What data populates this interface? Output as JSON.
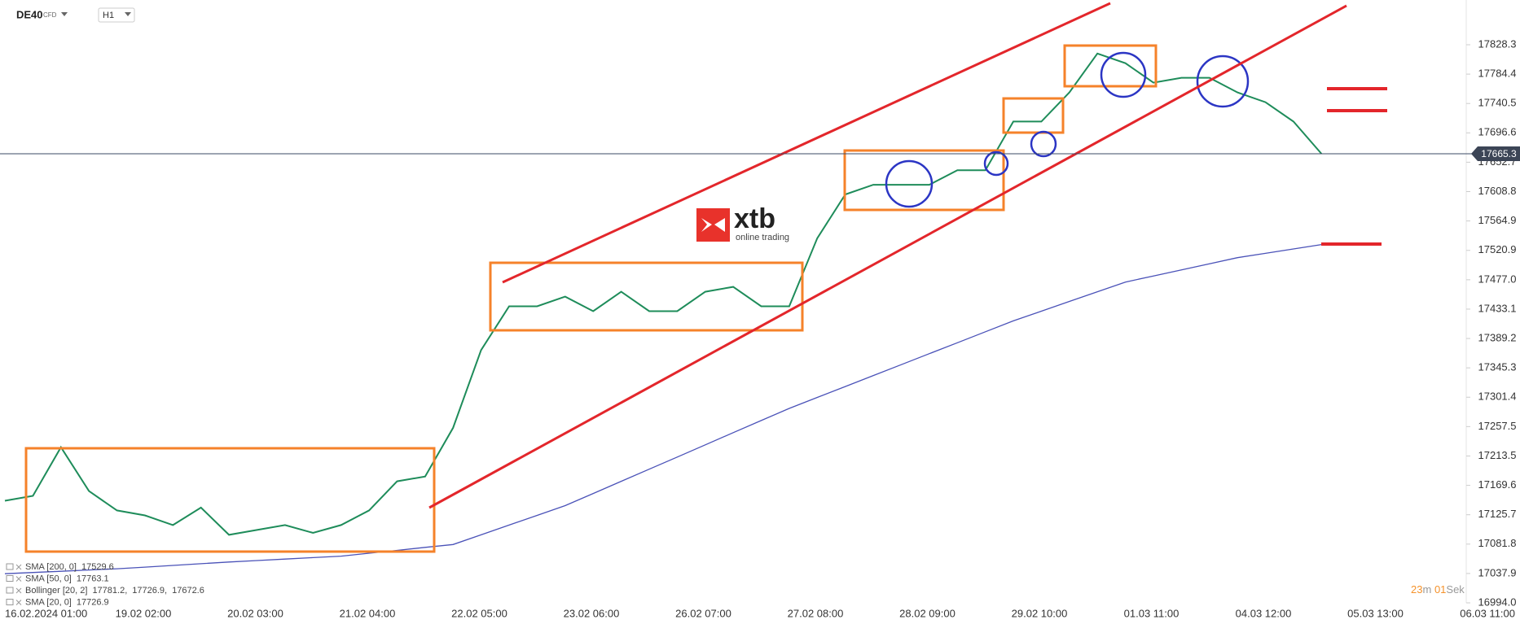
{
  "header": {
    "instrument": "DE40",
    "market": "CFD",
    "timeframe": "H1"
  },
  "logo": {
    "brand": "xtb",
    "tagline": "online trading"
  },
  "timer": {
    "minutes": "23",
    "minutes_unit": "m",
    "seconds": "01",
    "seconds_unit": "Sek"
  },
  "chart_data": {
    "type": "line",
    "current_price": 17665.3,
    "ylim": [
      16994.0,
      17895.2
    ],
    "yticks": [
      17828.3,
      17784.4,
      17740.5,
      17696.6,
      17652.7,
      17608.8,
      17564.9,
      17520.9,
      {
        "value": 17477,
        "label": "17477.0"
      },
      17433.1,
      17389.2,
      17345.3,
      17301.4,
      17257.5,
      17213.5,
      17169.6,
      17125.7,
      17081.8,
      17037.9,
      {
        "value": 16994,
        "label": "16994.0"
      }
    ],
    "xtick_labels": [
      "16.02.2024  01:00",
      "19.02  02:00",
      "20.02  03:00",
      "21.02  04:00",
      "22.02  05:00",
      "23.02  06:00",
      "26.02  07:00",
      "27.02  08:00",
      "28.02  09:00",
      "29.02  10:00",
      "01.03  11:00",
      "04.03  12:00",
      "05.03  13:00",
      "06.03  11:00"
    ],
    "series": [
      {
        "name": "DE40",
        "color": "#1e8c5a",
        "values": [
          17146.6,
          17153.9,
          17226.6,
          17161.1,
          17132.1,
          17124.8,
          17110.3,
          17136.4,
          17095.7,
          17103.0,
          17110.3,
          17098.6,
          17110.3,
          17132.1,
          17175.7,
          17182.9,
          17255.6,
          17371.9,
          17437.3,
          17437.3,
          17451.8,
          17430.0,
          17459.1,
          17430.0,
          17430.0,
          17459.1,
          17466.4,
          17437.3,
          17437.3,
          17539.1,
          17604.5,
          17619.0,
          17619.0,
          17619.0,
          17640.8,
          17640.8,
          17713.5,
          17713.5,
          17757.1,
          17815.2,
          17800.7,
          17771.6,
          17778.9,
          17778.9,
          17757.1,
          17742.5,
          17713.5,
          17665.3
        ]
      },
      {
        "name": "SMA [200, 0]",
        "color": "#4a52b8",
        "values": [
          17037.6,
          17039.4,
          17041.2,
          17043.1,
          17044.9,
          17047.4,
          17049.9,
          17052.5,
          17055.0,
          17057.2,
          17059.4,
          17061.6,
          17063.8,
          17068.2,
          17072.5,
          17076.9,
          17081.2,
          17095.7,
          17110.3,
          17124.8,
          17139.3,
          17157.5,
          17175.7,
          17193.8,
          17212.0,
          17230.2,
          17248.4,
          17266.5,
          17284.7,
          17301.1,
          17317.4,
          17333.8,
          17350.1,
          17366.5,
          17382.8,
          17399.2,
          17415.5,
          17430.0,
          17444.6,
          17459.1,
          17473.6,
          17482.7,
          17491.8,
          17500.9,
          17510.0,
          17516.5,
          17523.1,
          17529.6
        ]
      }
    ],
    "legend": [
      {
        "name": "SMA [200, 0]",
        "values": [
          17529.6
        ]
      },
      {
        "name": "SMA [50, 0]",
        "values": [
          17763.1
        ]
      },
      {
        "name": "Bollinger [20, 2]",
        "values": [
          17781.2,
          17726.9,
          17672.6
        ],
        "value_labels": [
          "17781.2,",
          "17726.9,",
          "17672.6"
        ]
      },
      {
        "name": "SMA [20, 0]",
        "values": [
          17726.9
        ]
      }
    ]
  }
}
